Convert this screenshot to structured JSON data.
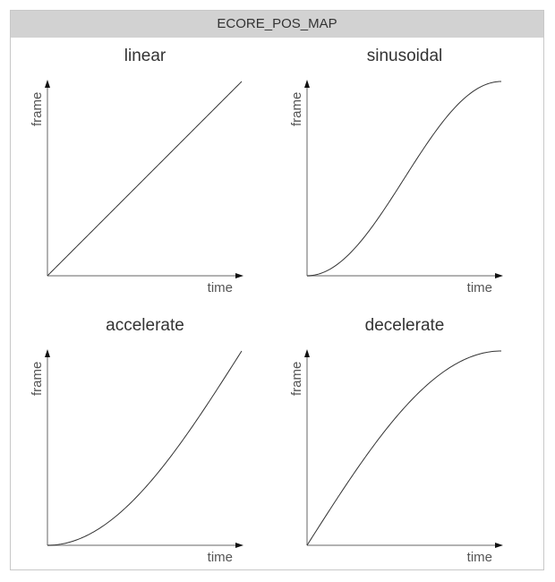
{
  "header": {
    "title": "ECORE_POS_MAP"
  },
  "panels": [
    {
      "title": "linear",
      "curve": "linear",
      "xlabel": "time",
      "ylabel": "frame"
    },
    {
      "title": "sinusoidal",
      "curve": "sinusoidal",
      "xlabel": "time",
      "ylabel": "frame"
    },
    {
      "title": "accelerate",
      "curve": "accelerate",
      "xlabel": "time",
      "ylabel": "frame"
    },
    {
      "title": "decelerate",
      "curve": "decelerate",
      "xlabel": "time",
      "ylabel": "frame"
    }
  ],
  "colors": {
    "header_bg": "#d2d2d2",
    "axis": "#999999",
    "curve": "#333333",
    "border": "#c8c8c8"
  }
}
